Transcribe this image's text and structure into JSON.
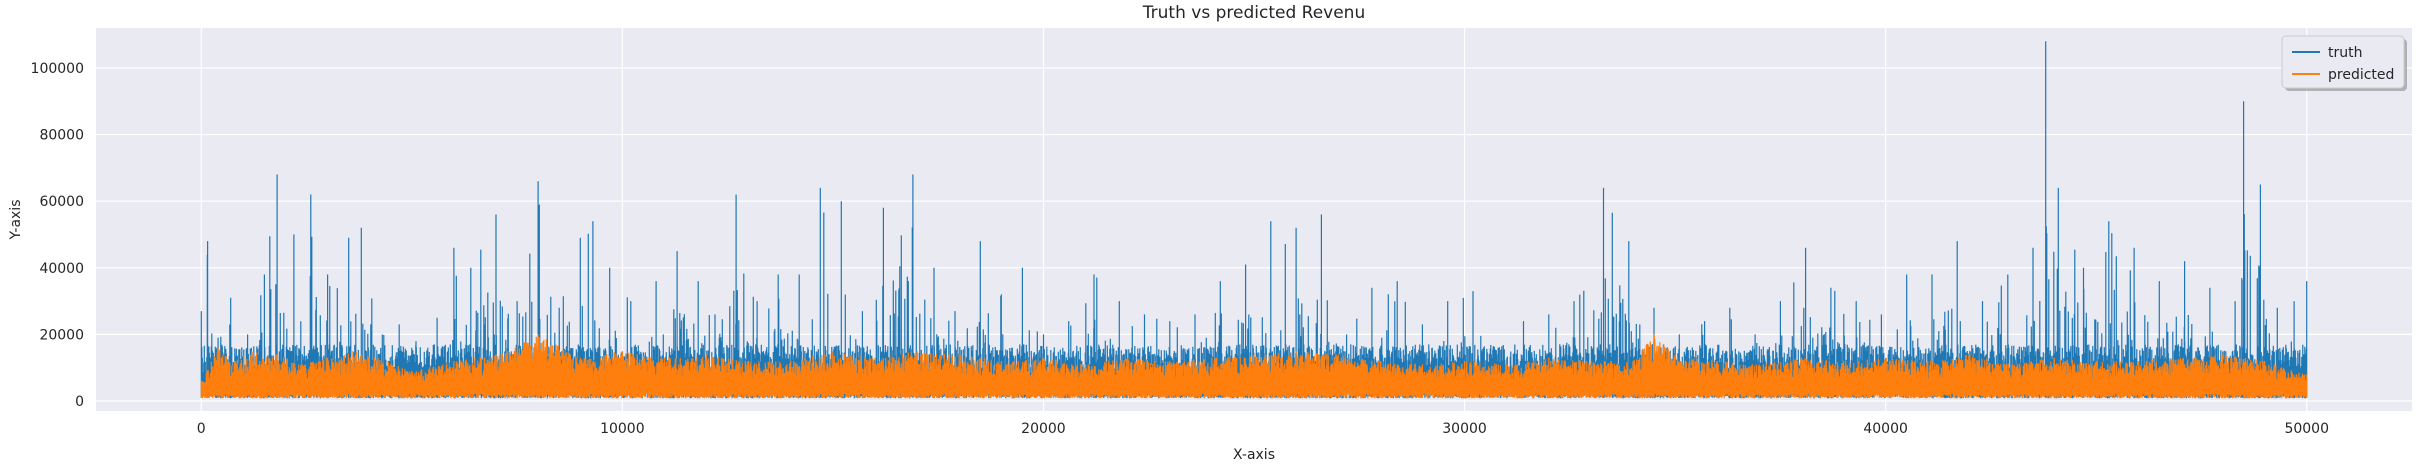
{
  "chart_data": {
    "type": "line",
    "title": "Truth vs predicted Revenu",
    "xlabel": "X-axis",
    "ylabel": "Y-axis",
    "xlim": [
      -2500,
      52500
    ],
    "ylim": [
      -3000,
      112000
    ],
    "xticks": [
      0,
      10000,
      20000,
      30000,
      40000,
      50000
    ],
    "xtick_labels": [
      "0",
      "10000",
      "20000",
      "30000",
      "40000",
      "50000"
    ],
    "yticks": [
      0,
      20000,
      40000,
      60000,
      80000,
      100000
    ],
    "ytick_labels": [
      "0",
      "20000",
      "40000",
      "60000",
      "80000",
      "100000"
    ],
    "grid": true,
    "legend_position": "top-right",
    "series": [
      {
        "name": "truth",
        "color": "#1f77b4",
        "x": [
          0,
          150,
          400,
          700,
          1100,
          1500,
          1800,
          2200,
          2600,
          3000,
          3500,
          3800,
          4300,
          4700,
          5100,
          5600,
          6000,
          6400,
          7000,
          7500,
          8000,
          8500,
          9000,
          9300,
          9700,
          10200,
          10800,
          11300,
          11800,
          12200,
          12700,
          13200,
          13700,
          14200,
          14700,
          15200,
          15700,
          16200,
          16900,
          17400,
          17900,
          18500,
          19000,
          19500,
          20000,
          20600,
          21200,
          21800,
          22400,
          23000,
          23600,
          24200,
          24800,
          25400,
          26000,
          26600,
          27200,
          27800,
          28400,
          29000,
          29600,
          30200,
          30800,
          31400,
          32000,
          32600,
          33300,
          33900,
          34500,
          35100,
          35700,
          36300,
          36900,
          37500,
          38100,
          38700,
          39300,
          39900,
          40500,
          41100,
          41700,
          42300,
          42900,
          43500,
          43800,
          44100,
          44700,
          45300,
          45900,
          46500,
          47100,
          47700,
          48300,
          48500,
          48900,
          49300,
          49700,
          50000
        ],
        "values": [
          27000,
          48000,
          19000,
          31000,
          20000,
          38000,
          68000,
          50000,
          62000,
          38000,
          49000,
          52000,
          20000,
          23000,
          18000,
          25000,
          46000,
          40000,
          56000,
          30000,
          66000,
          28000,
          49000,
          54000,
          40000,
          30000,
          36000,
          45000,
          36000,
          26000,
          62000,
          30000,
          38000,
          38000,
          64000,
          60000,
          27000,
          58000,
          68000,
          40000,
          27000,
          48000,
          32000,
          40000,
          20000,
          24000,
          38000,
          30000,
          26000,
          24000,
          26000,
          36000,
          41000,
          54000,
          52000,
          56000,
          20000,
          34000,
          36000,
          23000,
          30000,
          33000,
          16000,
          24000,
          26000,
          30000,
          64000,
          48000,
          28000,
          20000,
          24000,
          28000,
          20000,
          30000,
          46000,
          34000,
          30000,
          26000,
          38000,
          38000,
          48000,
          30000,
          38000,
          46000,
          108000,
          64000,
          40000,
          54000,
          46000,
          36000,
          42000,
          34000,
          30000,
          90000,
          65000,
          28000,
          30000,
          36000
        ]
      },
      {
        "name": "predicted",
        "color": "#ff7f0e",
        "x": [
          0,
          400,
          800,
          1200,
          1800,
          2400,
          3000,
          3600,
          4200,
          5000,
          6000,
          7000,
          8000,
          9000,
          10000,
          11000,
          12000,
          13000,
          14000,
          15000,
          16000,
          17000,
          18000,
          19000,
          20000,
          21000,
          22000,
          23000,
          24000,
          25000,
          26000,
          27000,
          28000,
          29000,
          30000,
          31000,
          32000,
          33000,
          34000,
          34500,
          35000,
          36000,
          37000,
          38000,
          39000,
          40000,
          41000,
          42000,
          43000,
          44000,
          45000,
          46000,
          47000,
          48000,
          49000,
          50000
        ],
        "values": [
          6000,
          16000,
          12000,
          15000,
          14000,
          11000,
          13000,
          15000,
          13000,
          9000,
          12000,
          14000,
          20000,
          13000,
          15000,
          13000,
          14000,
          12000,
          12000,
          15000,
          13000,
          15000,
          14000,
          12000,
          13000,
          11000,
          13000,
          12000,
          13000,
          14000,
          15000,
          14000,
          12000,
          11000,
          12000,
          11000,
          13000,
          12000,
          12000,
          20000,
          14000,
          12000,
          11000,
          13000,
          12000,
          13000,
          12000,
          14000,
          11000,
          13000,
          12000,
          12000,
          13000,
          14000,
          12000,
          8000
        ]
      }
    ]
  }
}
